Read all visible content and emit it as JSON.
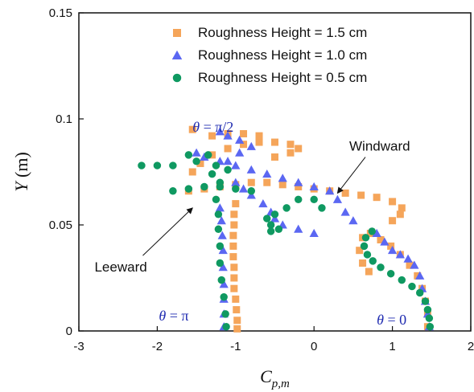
{
  "chart_data": {
    "type": "scatter",
    "xlabel_main": "C",
    "xlabel_sub": "p,m",
    "ylabel_italic": "Y",
    "ylabel_unit": " (m)",
    "xlim": [
      -3,
      2
    ],
    "ylim": [
      0,
      0.15
    ],
    "xticks": [
      -3,
      -2,
      -1,
      0,
      1,
      2
    ],
    "yticks": [
      0,
      0.05,
      0.1,
      0.15
    ],
    "xtick_labels": [
      "-3",
      "-2",
      "-1",
      "0",
      "1",
      "2"
    ],
    "ytick_labels": [
      "0",
      "0.05",
      "0.1",
      "0.15"
    ],
    "legend_position": "top-right",
    "series": [
      {
        "name": "Roughness Height = 1.5 cm",
        "marker": "square",
        "color": "#f5a55a",
        "points": [
          [
            1.45,
            0.002
          ],
          [
            1.45,
            0.008
          ],
          [
            1.42,
            0.014
          ],
          [
            1.38,
            0.02
          ],
          [
            1.32,
            0.026
          ],
          [
            1.22,
            0.031
          ],
          [
            1.1,
            0.036
          ],
          [
            0.98,
            0.04
          ],
          [
            0.85,
            0.043
          ],
          [
            0.72,
            0.046
          ],
          [
            0.62,
            0.044
          ],
          [
            0.58,
            0.038
          ],
          [
            0.62,
            0.032
          ],
          [
            0.7,
            0.028
          ],
          [
            1.0,
            0.052
          ],
          [
            1.1,
            0.055
          ],
          [
            1.12,
            0.058
          ],
          [
            1.0,
            0.061
          ],
          [
            0.8,
            0.063
          ],
          [
            0.6,
            0.064
          ],
          [
            0.4,
            0.065
          ],
          [
            0.2,
            0.066
          ],
          [
            0.0,
            0.067
          ],
          [
            -0.2,
            0.068
          ],
          [
            -0.4,
            0.069
          ],
          [
            -0.6,
            0.07
          ],
          [
            -0.8,
            0.07
          ],
          [
            -1.0,
            0.069
          ],
          [
            -1.2,
            0.068
          ],
          [
            -1.4,
            0.067
          ],
          [
            -1.6,
            0.066
          ],
          [
            -1.55,
            0.075
          ],
          [
            -1.45,
            0.079
          ],
          [
            -1.3,
            0.083
          ],
          [
            -1.1,
            0.086
          ],
          [
            -0.9,
            0.088
          ],
          [
            -0.7,
            0.089
          ],
          [
            -0.5,
            0.089
          ],
          [
            -0.3,
            0.088
          ],
          [
            -0.2,
            0.086
          ],
          [
            -0.3,
            0.084
          ],
          [
            -0.5,
            0.082
          ],
          [
            -1.3,
            0.092
          ],
          [
            -1.1,
            0.093
          ],
          [
            -0.9,
            0.093
          ],
          [
            -0.7,
            0.092
          ],
          [
            -1.55,
            0.095
          ],
          [
            -1.0,
            0.06
          ],
          [
            -1.02,
            0.055
          ],
          [
            -1.02,
            0.05
          ],
          [
            -1.03,
            0.045
          ],
          [
            -1.03,
            0.04
          ],
          [
            -1.03,
            0.035
          ],
          [
            -1.02,
            0.03
          ],
          [
            -1.02,
            0.025
          ],
          [
            -1.02,
            0.02
          ],
          [
            -1.0,
            0.015
          ],
          [
            -0.99,
            0.01
          ],
          [
            -0.98,
            0.005
          ],
          [
            -0.98,
            0.001
          ]
        ]
      },
      {
        "name": "Roughness Height = 1.0 cm",
        "marker": "triangle",
        "color": "#5b67f2",
        "points": [
          [
            1.47,
            0.002
          ],
          [
            1.45,
            0.008
          ],
          [
            1.42,
            0.014
          ],
          [
            1.38,
            0.02
          ],
          [
            1.35,
            0.026
          ],
          [
            1.28,
            0.031
          ],
          [
            1.2,
            0.034
          ],
          [
            1.1,
            0.036
          ],
          [
            1.0,
            0.038
          ],
          [
            0.9,
            0.042
          ],
          [
            0.8,
            0.046
          ],
          [
            0.5,
            0.052
          ],
          [
            0.4,
            0.056
          ],
          [
            0.3,
            0.062
          ],
          [
            0.2,
            0.066
          ],
          [
            0.0,
            0.068
          ],
          [
            -0.2,
            0.07
          ],
          [
            -0.4,
            0.072
          ],
          [
            -0.6,
            0.074
          ],
          [
            -0.8,
            0.076
          ],
          [
            -1.0,
            0.078
          ],
          [
            -1.2,
            0.08
          ],
          [
            -1.4,
            0.082
          ],
          [
            -1.5,
            0.084
          ],
          [
            0.0,
            0.046
          ],
          [
            -0.2,
            0.048
          ],
          [
            -0.4,
            0.05
          ],
          [
            -0.5,
            0.053
          ],
          [
            -0.55,
            0.056
          ],
          [
            -0.65,
            0.06
          ],
          [
            -0.8,
            0.064
          ],
          [
            -0.9,
            0.067
          ],
          [
            -1.0,
            0.07
          ],
          [
            -1.1,
            0.08
          ],
          [
            -0.95,
            0.084
          ],
          [
            -0.8,
            0.087
          ],
          [
            -0.95,
            0.09
          ],
          [
            -1.1,
            0.092
          ],
          [
            -1.2,
            0.094
          ],
          [
            -1.2,
            0.058
          ],
          [
            -1.18,
            0.052
          ],
          [
            -1.17,
            0.045
          ],
          [
            -1.16,
            0.038
          ],
          [
            -1.16,
            0.03
          ],
          [
            -1.15,
            0.022
          ],
          [
            -1.15,
            0.015
          ],
          [
            -1.15,
            0.008
          ],
          [
            -1.15,
            0.002
          ]
        ]
      },
      {
        "name": "Roughness Height = 0.5 cm",
        "marker": "circle",
        "color": "#0f9961",
        "points": [
          [
            1.48,
            0.002
          ],
          [
            1.47,
            0.006
          ],
          [
            1.45,
            0.01
          ],
          [
            1.42,
            0.014
          ],
          [
            1.35,
            0.018
          ],
          [
            1.25,
            0.021
          ],
          [
            1.12,
            0.024
          ],
          [
            0.98,
            0.027
          ],
          [
            0.85,
            0.03
          ],
          [
            0.75,
            0.033
          ],
          [
            0.68,
            0.036
          ],
          [
            0.64,
            0.04
          ],
          [
            0.66,
            0.044
          ],
          [
            0.74,
            0.047
          ],
          [
            0.1,
            0.058
          ],
          [
            0.0,
            0.062
          ],
          [
            -0.2,
            0.062
          ],
          [
            -0.35,
            0.058
          ],
          [
            -0.5,
            0.055
          ],
          [
            -0.6,
            0.053
          ],
          [
            -0.55,
            0.05
          ],
          [
            -0.45,
            0.048
          ],
          [
            -0.55,
            0.047
          ],
          [
            -0.8,
            0.066
          ],
          [
            -1.0,
            0.067
          ],
          [
            -1.2,
            0.068
          ],
          [
            -1.4,
            0.068
          ],
          [
            -1.6,
            0.067
          ],
          [
            -1.8,
            0.066
          ],
          [
            -1.3,
            0.074
          ],
          [
            -1.1,
            0.076
          ],
          [
            -1.2,
            0.07
          ],
          [
            -1.5,
            0.08
          ],
          [
            -1.35,
            0.083
          ],
          [
            -1.25,
            0.078
          ],
          [
            -1.8,
            0.078
          ],
          [
            -2.0,
            0.078
          ],
          [
            -2.2,
            0.078
          ],
          [
            -1.6,
            0.083
          ],
          [
            -1.25,
            0.062
          ],
          [
            -1.22,
            0.055
          ],
          [
            -1.22,
            0.048
          ],
          [
            -1.2,
            0.04
          ],
          [
            -1.2,
            0.032
          ],
          [
            -1.18,
            0.024
          ],
          [
            -1.15,
            0.016
          ],
          [
            -1.13,
            0.008
          ],
          [
            -1.12,
            0.002
          ]
        ]
      }
    ],
    "annotations": [
      {
        "text_var": "θ",
        "text_val": " = π/2",
        "x": -1.55,
        "y": 0.094,
        "color": "#1f2bb0"
      },
      {
        "text_var": "θ",
        "text_val": " = π",
        "x": -1.98,
        "y": 0.005,
        "color": "#1f2bb0"
      },
      {
        "text_var": "θ",
        "text_val": " = 0",
        "x": 0.8,
        "y": 0.003,
        "color": "#1f2bb0"
      },
      {
        "text": "Windward",
        "x": 0.45,
        "y": 0.085,
        "arrow_to": [
          0.3,
          0.065
        ],
        "color": "#111111"
      },
      {
        "text": "Leeward",
        "x": -2.8,
        "y": 0.028,
        "arrow_to": [
          -1.55,
          0.058
        ],
        "color": "#111111"
      }
    ]
  }
}
